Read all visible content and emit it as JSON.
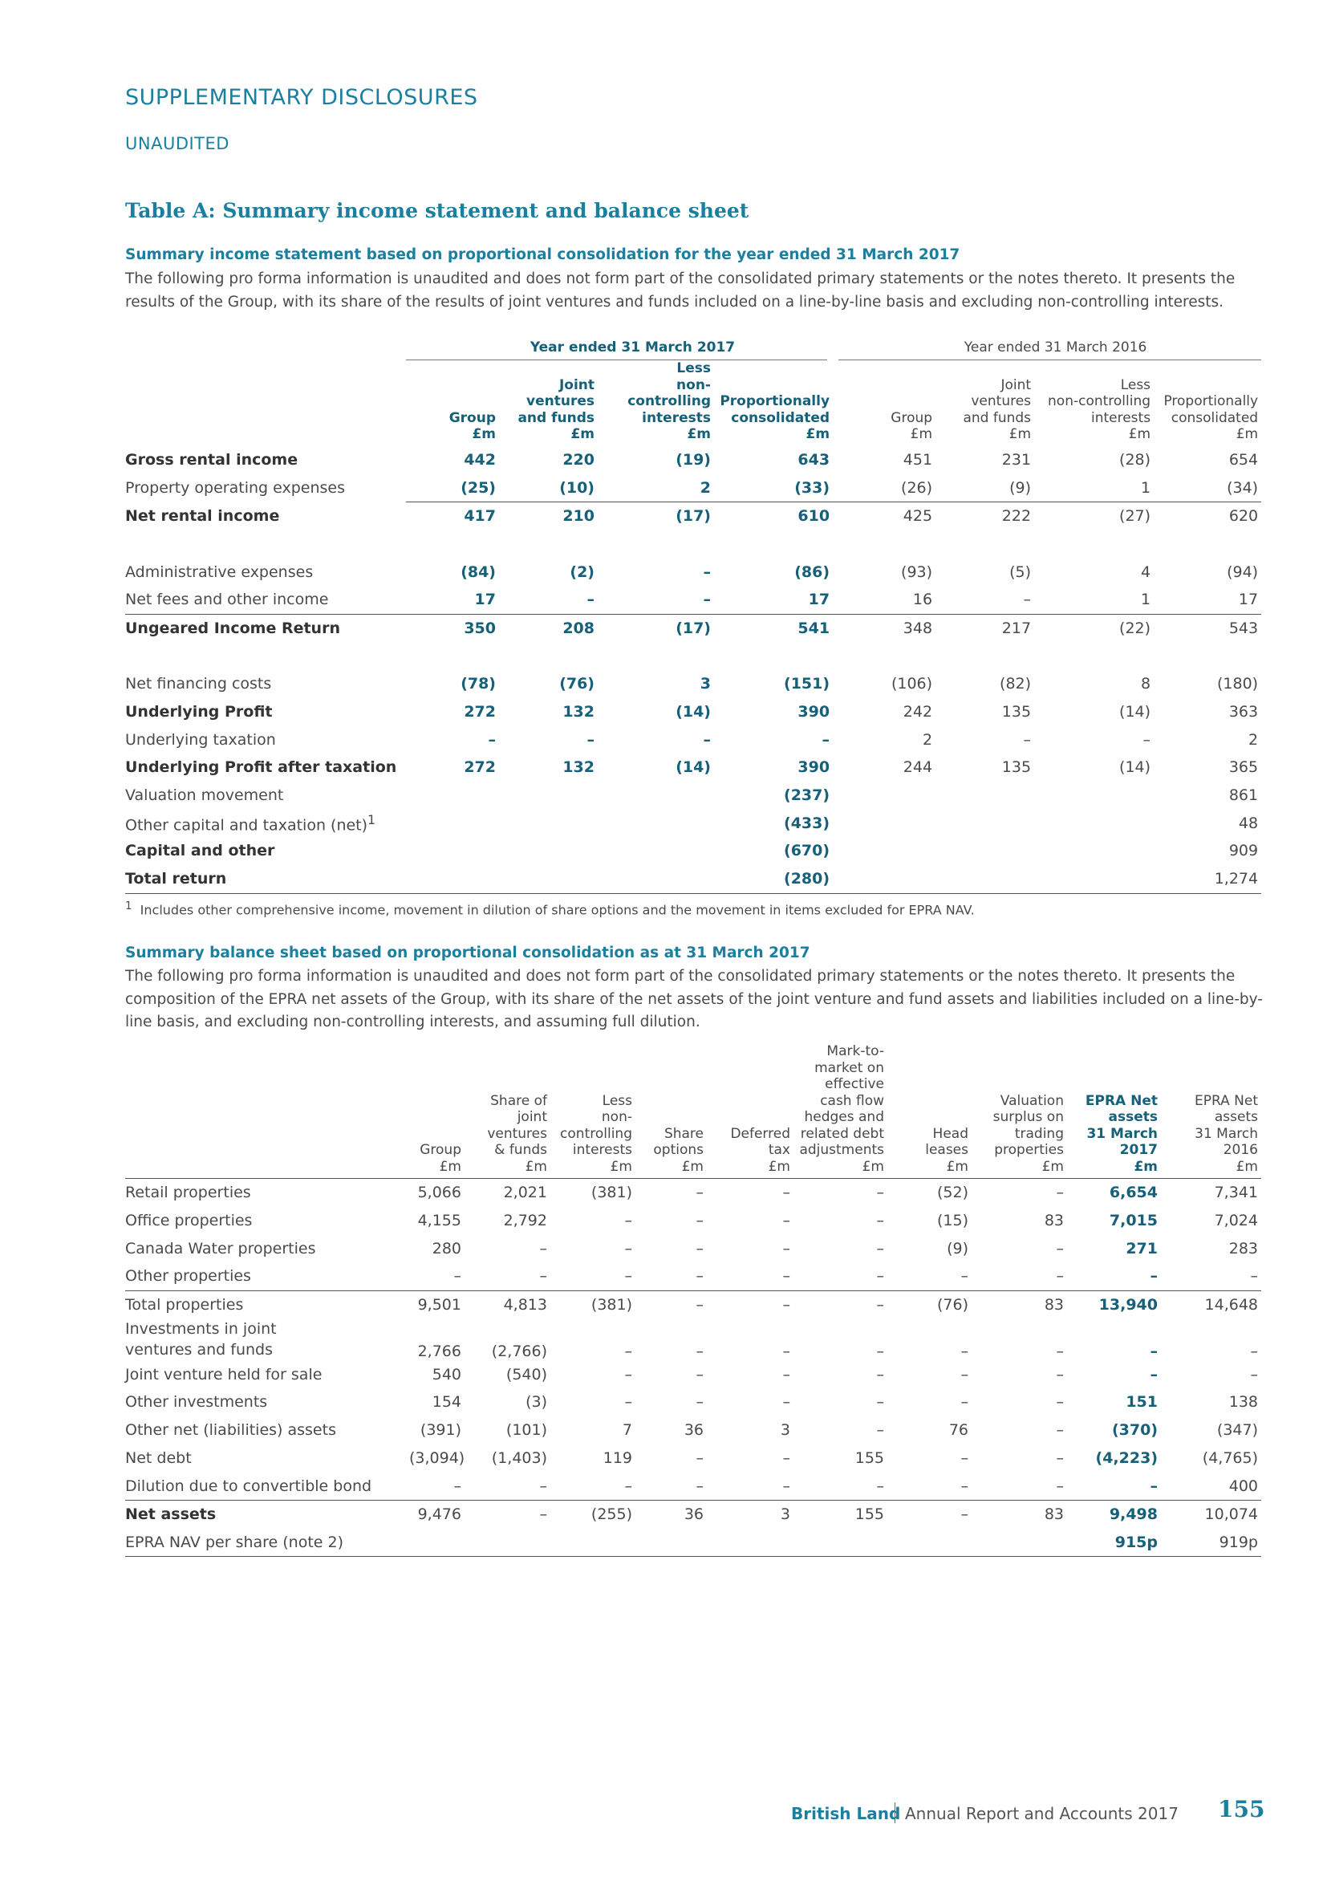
{
  "header": {
    "section": "SUPPLEMENTARY DISCLOSURES",
    "subsection": "UNAUDITED"
  },
  "table_title": "Table A: Summary income statement and balance sheet",
  "income": {
    "heading": "Summary income statement based on proportional consolidation for the year ended 31 March 2017",
    "intro": "The following pro forma information is unaudited and does not form part of the consolidated primary statements or the notes thereto. It presents the results of the Group, with its share of the results of joint ventures and funds included on a line-by-line basis and excluding non-controlling interests.",
    "groups": [
      "Year ended 31 March 2017",
      "Year ended 31 March 2016"
    ],
    "columns": [
      "Group\n£m",
      "Joint\nventures\nand funds\n£m",
      "Less\nnon-controlling\ninterests\n£m",
      "Proportionally\nconsolidated\n£m",
      "Group\n£m",
      "Joint\nventures\nand funds\n£m",
      "Less\nnon-controlling\ninterests\n£m",
      "Proportionally\nconsolidated\n£m"
    ],
    "rows": [
      {
        "label": "Gross rental income",
        "values": [
          "442",
          "220",
          "(19)",
          "643",
          "451",
          "231",
          "(28)",
          "654"
        ]
      },
      {
        "label": "Property operating expenses",
        "values": [
          "(25)",
          "(10)",
          "2",
          "(33)",
          "(26)",
          "(9)",
          "1",
          "(34)"
        ]
      },
      {
        "label": "Net rental income",
        "values": [
          "417",
          "210",
          "(17)",
          "610",
          "425",
          "222",
          "(27)",
          "620"
        ]
      },
      {
        "label": "Administrative expenses",
        "values": [
          "(84)",
          "(2)",
          "–",
          "(86)",
          "(93)",
          "(5)",
          "4",
          "(94)"
        ]
      },
      {
        "label": "Net fees and other income",
        "values": [
          "17",
          "–",
          "–",
          "17",
          "16",
          "–",
          "1",
          "17"
        ]
      },
      {
        "label": "Ungeared Income Return",
        "values": [
          "350",
          "208",
          "(17)",
          "541",
          "348",
          "217",
          "(22)",
          "543"
        ]
      },
      {
        "label": "Net financing costs",
        "values": [
          "(78)",
          "(76)",
          "3",
          "(151)",
          "(106)",
          "(82)",
          "8",
          "(180)"
        ]
      },
      {
        "label": "Underlying Profit",
        "values": [
          "272",
          "132",
          "(14)",
          "390",
          "242",
          "135",
          "(14)",
          "363"
        ]
      },
      {
        "label": "Underlying taxation",
        "values": [
          "–",
          "–",
          "–",
          "–",
          "2",
          "–",
          "–",
          "2"
        ]
      },
      {
        "label": "Underlying Profit after taxation",
        "values": [
          "272",
          "132",
          "(14)",
          "390",
          "244",
          "135",
          "(14)",
          "365"
        ]
      },
      {
        "label": "Valuation movement",
        "values": [
          null,
          null,
          null,
          "(237)",
          null,
          null,
          null,
          "861"
        ]
      },
      {
        "label": "Other capital and taxation (net)",
        "note": "1",
        "values": [
          null,
          null,
          null,
          "(433)",
          null,
          null,
          null,
          "48"
        ]
      },
      {
        "label": "Capital and other",
        "values": [
          null,
          null,
          null,
          "(670)",
          null,
          null,
          null,
          "909"
        ]
      },
      {
        "label": "Total return",
        "values": [
          null,
          null,
          null,
          "(280)",
          null,
          null,
          null,
          "1,274"
        ]
      }
    ],
    "footnote": {
      "marker": "1",
      "text": "Includes other comprehensive income, movement in dilution of share options and the movement in items excluded for EPRA NAV."
    }
  },
  "balance": {
    "heading": "Summary balance sheet based on proportional consolidation as at 31 March 2017",
    "intro": "The following pro forma information is unaudited and does not form part of the consolidated primary statements or the notes thereto. It presents the composition of the EPRA net assets of the Group, with its share of the net assets of the joint venture and fund assets and liabilities included on a line-by-line basis, and excluding non-controlling interests, and assuming full dilution.",
    "columns": [
      "Group\n£m",
      "Share of\njoint\nventures\n& funds\n£m",
      "Less\nnon-\ncontrolling\ninterests\n£m",
      "Share\noptions\n£m",
      "Deferred\ntax\n£m",
      "Mark-to-\nmarket on\neffective\ncash flow\nhedges and\nrelated debt\nadjustments\n£m",
      "Head\nleases\n£m",
      "Valuation\nsurplus on\ntrading\nproperties\n£m",
      "EPRA Net\nassets\n31 March\n2017\n£m",
      "EPRA Net\nassets\n31 March\n2016\n£m"
    ],
    "rows": [
      {
        "label": "Retail properties",
        "values": [
          "5,066",
          "2,021",
          "(381)",
          "–",
          "–",
          "–",
          "(52)",
          "–",
          "6,654",
          "7,341"
        ]
      },
      {
        "label": "Office properties",
        "values": [
          "4,155",
          "2,792",
          "–",
          "–",
          "–",
          "–",
          "(15)",
          "83",
          "7,015",
          "7,024"
        ]
      },
      {
        "label": "Canada Water properties",
        "values": [
          "280",
          "–",
          "–",
          "–",
          "–",
          "–",
          "(9)",
          "–",
          "271",
          "283"
        ]
      },
      {
        "label": "Other properties",
        "values": [
          "–",
          "–",
          "–",
          "–",
          "–",
          "–",
          "–",
          "–",
          "–",
          "–"
        ]
      },
      {
        "label": "Total properties",
        "values": [
          "9,501",
          "4,813",
          "(381)",
          "–",
          "–",
          "–",
          "(76)",
          "83",
          "13,940",
          "14,648"
        ]
      },
      {
        "label": "Investments in joint ventures and funds",
        "values": [
          "2,766",
          "(2,766)",
          "–",
          "–",
          "–",
          "–",
          "–",
          "–",
          "–",
          "–"
        ]
      },
      {
        "label": "Joint venture held for sale",
        "values": [
          "540",
          "(540)",
          "–",
          "–",
          "–",
          "–",
          "–",
          "–",
          "–",
          "–"
        ]
      },
      {
        "label": "Other investments",
        "values": [
          "154",
          "(3)",
          "–",
          "–",
          "–",
          "–",
          "–",
          "–",
          "151",
          "138"
        ]
      },
      {
        "label": "Other net (liabilities) assets",
        "values": [
          "(391)",
          "(101)",
          "7",
          "36",
          "3",
          "–",
          "76",
          "–",
          "(370)",
          "(347)"
        ]
      },
      {
        "label": "Net debt",
        "values": [
          "(3,094)",
          "(1,403)",
          "119",
          "–",
          "–",
          "155",
          "–",
          "–",
          "(4,223)",
          "(4,765)"
        ]
      },
      {
        "label": "Dilution due to convertible bond",
        "values": [
          "–",
          "–",
          "–",
          "–",
          "–",
          "–",
          "–",
          "–",
          "–",
          "400"
        ]
      },
      {
        "label": "Net assets",
        "values": [
          "9,476",
          "–",
          "(255)",
          "36",
          "3",
          "155",
          "–",
          "83",
          "9,498",
          "10,074"
        ]
      },
      {
        "label": "EPRA NAV per share (note 2)",
        "values": [
          null,
          null,
          null,
          null,
          null,
          null,
          null,
          null,
          "915p",
          "919p"
        ]
      }
    ]
  },
  "footer": {
    "company": "British Land",
    "report": "Annual Report and Accounts 2017",
    "page": "155"
  }
}
